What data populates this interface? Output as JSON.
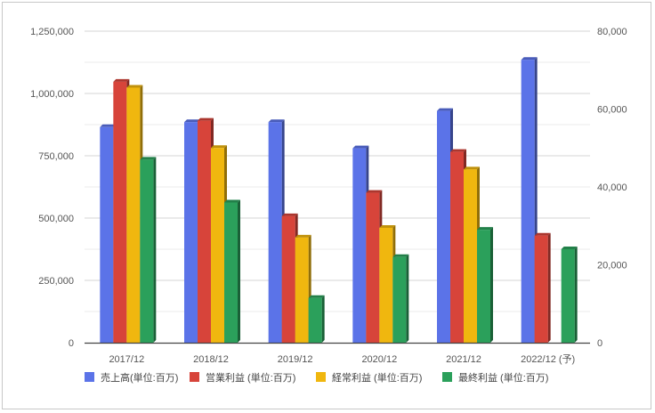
{
  "chart_data": {
    "type": "bar",
    "categories": [
      "2017/12",
      "2018/12",
      "2019/12",
      "2020/12",
      "2021/12",
      "2022/12 (予)"
    ],
    "left_axis": {
      "ylim": [
        0,
        1250000
      ],
      "ticks": [
        "0",
        "250,000",
        "500,000",
        "750,000",
        "1,000,000",
        "1,250,000"
      ]
    },
    "right_axis": {
      "ylim": [
        0,
        80000
      ],
      "ticks": [
        "0",
        "20,000",
        "40,000",
        "60,000",
        "80,000"
      ]
    },
    "grid": true,
    "legend_position": "bottom",
    "series": [
      {
        "name": "売上高(単位:百万)",
        "axis": "left",
        "color": "#5b73e8",
        "values": [
          865000,
          885000,
          885000,
          780000,
          930000,
          1135000
        ]
      },
      {
        "name": "営業利益 (単位:百万)",
        "axis": "right",
        "color": "#d7443a",
        "values": [
          67000,
          57000,
          32500,
          38500,
          49000,
          27500
        ]
      },
      {
        "name": "経常利益 (単位:百万)",
        "axis": "right",
        "color": "#f0b70f",
        "values": [
          65500,
          50000,
          27000,
          29500,
          44500,
          null
        ]
      },
      {
        "name": "最終利益 (単位:百万)",
        "axis": "right",
        "color": "#2ba05b",
        "values": [
          47000,
          36000,
          11500,
          22000,
          29000,
          24000
        ]
      }
    ]
  }
}
